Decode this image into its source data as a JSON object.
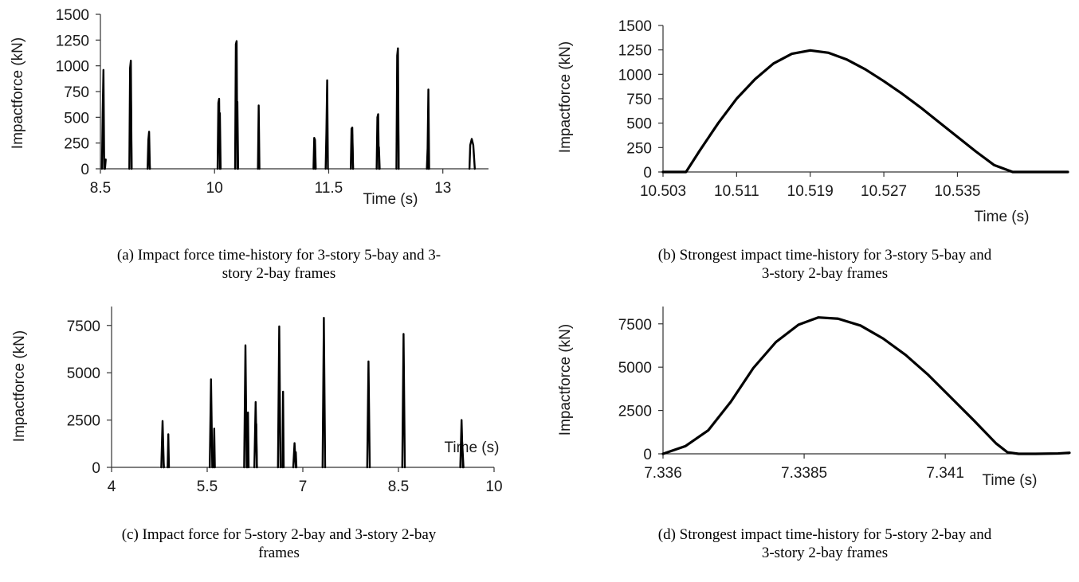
{
  "panels": [
    {
      "id": "a",
      "caption": "(a)  Impact force time-history for 3-story 5-bay and 3-\nstory 2-bay frames",
      "chart_data": {
        "type": "line",
        "title": "",
        "xlabel": "Time (s)",
        "ylabel": "Impactforce (kN)",
        "xlim": [
          8.5,
          13.6
        ],
        "ylim": [
          0,
          1500
        ],
        "xticks": [
          8.5,
          10,
          11.5,
          13
        ],
        "xtick_labels": [
          "8.5",
          "10",
          "11.5",
          "13"
        ],
        "yticks": [
          0,
          250,
          500,
          750,
          1000,
          1250,
          1500
        ],
        "ytick_labels": [
          "0",
          "250",
          "500",
          "750",
          "1000",
          "1250",
          "1500"
        ],
        "grid": false,
        "legend": "none",
        "series": [
          {
            "x": [
              8.52,
              8.53,
              8.54,
              8.55
            ],
            "y": [
              0,
              540,
              960,
              0
            ]
          },
          {
            "x": [
              8.56,
              8.57
            ],
            "y": [
              0,
              90
            ]
          },
          {
            "x": [
              8.88,
              8.89,
              8.9,
              8.91
            ],
            "y": [
              0,
              980,
              1050,
              0
            ]
          },
          {
            "x": [
              8.9,
              8.91
            ],
            "y": [
              760,
              0
            ]
          },
          {
            "x": [
              9.12,
              9.13,
              9.14,
              9.15
            ],
            "y": [
              0,
              280,
              360,
              0
            ]
          },
          {
            "x": [
              9.14,
              9.15
            ],
            "y": [
              120,
              0
            ]
          },
          {
            "x": [
              10.04,
              10.05,
              10.06,
              10.07
            ],
            "y": [
              0,
              640,
              680,
              0
            ]
          },
          {
            "x": [
              10.07,
              10.08
            ],
            "y": [
              540,
              0
            ]
          },
          {
            "x": [
              10.27,
              10.28,
              10.29,
              10.3
            ],
            "y": [
              0,
              1210,
              1240,
              0
            ]
          },
          {
            "x": [
              10.3,
              10.31
            ],
            "y": [
              650,
              0
            ]
          },
          {
            "x": [
              10.57,
              10.58,
              10.59
            ],
            "y": [
              0,
              615,
              0
            ]
          },
          {
            "x": [
              11.3,
              11.31,
              11.32,
              11.33
            ],
            "y": [
              0,
              300,
              280,
              0
            ]
          },
          {
            "x": [
              11.31,
              11.32
            ],
            "y": [
              110,
              0
            ]
          },
          {
            "x": [
              11.46,
              11.47,
              11.48,
              11.49
            ],
            "y": [
              0,
              360,
              860,
              0
            ]
          },
          {
            "x": [
              11.79,
              11.8,
              11.81,
              11.82
            ],
            "y": [
              0,
              390,
              400,
              0
            ]
          },
          {
            "x": [
              11.81,
              11.82
            ],
            "y": [
              330,
              0
            ]
          },
          {
            "x": [
              12.13,
              12.14,
              12.15,
              12.16
            ],
            "y": [
              0,
              500,
              530,
              0
            ]
          },
          {
            "x": [
              12.16,
              12.17
            ],
            "y": [
              210,
              0
            ]
          },
          {
            "x": [
              12.39,
              12.4,
              12.41,
              12.42
            ],
            "y": [
              0,
              1100,
              1170,
              0
            ]
          },
          {
            "x": [
              12.41,
              12.42
            ],
            "y": [
              650,
              0
            ]
          },
          {
            "x": [
              12.79,
              12.8,
              12.81,
              12.82
            ],
            "y": [
              0,
              200,
              770,
              0
            ]
          },
          {
            "x": [
              12.8,
              12.81
            ],
            "y": [
              90,
              0
            ]
          },
          {
            "x": [
              13.35,
              13.36,
              13.38,
              13.4,
              13.42
            ],
            "y": [
              0,
              230,
              290,
              230,
              0
            ]
          }
        ]
      }
    },
    {
      "id": "b",
      "caption": "(b)  Strongest impact time-history for 3-story 5-bay and\n3-story 2-bay frames",
      "chart_data": {
        "type": "line",
        "title": "",
        "xlabel": "Time (s)",
        "ylabel": "Impactforce (kN)",
        "xlim": [
          10.503,
          10.547
        ],
        "ylim": [
          0,
          1500
        ],
        "xticks": [
          10.503,
          10.511,
          10.519,
          10.527,
          10.535
        ],
        "xtick_labels": [
          "10.503",
          "10.511",
          "10.519",
          "10.527",
          "10.535"
        ],
        "yticks": [
          0,
          250,
          500,
          750,
          1000,
          1250,
          1500
        ],
        "ytick_labels": [
          "0",
          "250",
          "500",
          "750",
          "1000",
          "1250",
          "1500"
        ],
        "grid": false,
        "legend": "none",
        "series": [
          {
            "x": [
              10.503,
              10.5055,
              10.507,
              10.509,
              10.511,
              10.513,
              10.515,
              10.517,
              10.519,
              10.521,
              10.523,
              10.525,
              10.527,
              10.529,
              10.531,
              10.533,
              10.535,
              10.537,
              10.539,
              10.541,
              10.5413,
              10.543,
              10.547
            ],
            "y": [
              0,
              0,
              220,
              500,
              750,
              950,
              1110,
              1210,
              1245,
              1220,
              1150,
              1050,
              930,
              800,
              660,
              510,
              360,
              210,
              70,
              0,
              0,
              0,
              0
            ]
          }
        ]
      }
    },
    {
      "id": "c",
      "caption": "(c)  Impact force for 5-story 2-bay and 3-story 2-bay\nframes",
      "chart_data": {
        "type": "line",
        "title": "",
        "xlabel": "Time (s)",
        "ylabel": "Impactforce (kN)",
        "xlim": [
          4,
          10
        ],
        "ylim": [
          0,
          8500
        ],
        "xticks": [
          4,
          5.5,
          7,
          8.5,
          10
        ],
        "xtick_labels": [
          "4",
          "5.5",
          "7",
          "8.5",
          "10"
        ],
        "yticks": [
          0,
          2500,
          5000,
          7500
        ],
        "ytick_labels": [
          "0",
          "2500",
          "5000",
          "7500"
        ],
        "grid": false,
        "legend": "none",
        "series": [
          {
            "x": [
              4.78,
              4.8,
              4.82
            ],
            "y": [
              0,
              2450,
              0
            ]
          },
          {
            "x": [
              4.8,
              4.82
            ],
            "y": [
              1300,
              0
            ]
          },
          {
            "x": [
              4.88,
              4.89,
              4.9
            ],
            "y": [
              0,
              1750,
              0
            ]
          },
          {
            "x": [
              5.54,
              5.56,
              5.58
            ],
            "y": [
              0,
              4650,
              0
            ]
          },
          {
            "x": [
              5.6,
              5.61,
              5.62
            ],
            "y": [
              0,
              2050,
              0
            ]
          },
          {
            "x": [
              6.08,
              6.1,
              6.12
            ],
            "y": [
              0,
              6450,
              0
            ]
          },
          {
            "x": [
              6.13,
              6.14,
              6.15
            ],
            "y": [
              0,
              2900,
              0
            ]
          },
          {
            "x": [
              6.24,
              6.26,
              6.28
            ],
            "y": [
              0,
              3450,
              0
            ]
          },
          {
            "x": [
              6.27,
              6.28
            ],
            "y": [
              2300,
              0
            ]
          },
          {
            "x": [
              6.61,
              6.63,
              6.65
            ],
            "y": [
              0,
              7450,
              0
            ]
          },
          {
            "x": [
              6.68,
              6.69,
              6.7
            ],
            "y": [
              0,
              4000,
              0
            ]
          },
          {
            "x": [
              6.85,
              6.87,
              6.89
            ],
            "y": [
              0,
              1280,
              0
            ]
          },
          {
            "x": [
              6.89,
              6.9
            ],
            "y": [
              800,
              0
            ]
          },
          {
            "x": [
              7.31,
              7.33,
              7.35
            ],
            "y": [
              0,
              7900,
              0
            ]
          },
          {
            "x": [
              8.01,
              8.03,
              8.05
            ],
            "y": [
              0,
              5600,
              0
            ]
          },
          {
            "x": [
              8.56,
              8.58,
              8.6
            ],
            "y": [
              0,
              7050,
              0
            ]
          },
          {
            "x": [
              9.47,
              9.49,
              9.51
            ],
            "y": [
              0,
              2500,
              0
            ]
          },
          {
            "x": [
              9.5,
              9.52
            ],
            "y": [
              1300,
              0
            ]
          }
        ]
      }
    },
    {
      "id": "d",
      "caption": "(d)  Strongest impact time-history for 5-story 2-bay and\n3-story 2-bay frames",
      "chart_data": {
        "type": "line",
        "title": "",
        "xlabel": "Time (s)",
        "ylabel": "Impactforce (kN)",
        "xlim": [
          7.336,
          7.3432
        ],
        "ylim": [
          0,
          8500
        ],
        "xticks": [
          7.336,
          7.3385,
          7.341
        ],
        "xtick_labels": [
          "7.336",
          "7.3385",
          "7.341"
        ],
        "yticks": [
          0,
          2500,
          5000,
          7500
        ],
        "ytick_labels": [
          "0",
          "2500",
          "5000",
          "7500"
        ],
        "grid": false,
        "legend": "none",
        "series": [
          {
            "x": [
              7.336,
              7.3364,
              7.3368,
              7.3372,
              7.3376,
              7.338,
              7.3384,
              7.33875,
              7.3391,
              7.3395,
              7.3399,
              7.3403,
              7.3407,
              7.3411,
              7.3415,
              7.3419,
              7.3421,
              7.3423,
              7.3426,
              7.343,
              7.3432
            ],
            "y": [
              0,
              450,
              1350,
              3000,
              4950,
              6450,
              7450,
              7870,
              7800,
              7400,
              6650,
              5700,
              4550,
              3250,
              1950,
              600,
              90,
              0,
              0,
              20,
              60
            ]
          }
        ]
      }
    }
  ]
}
